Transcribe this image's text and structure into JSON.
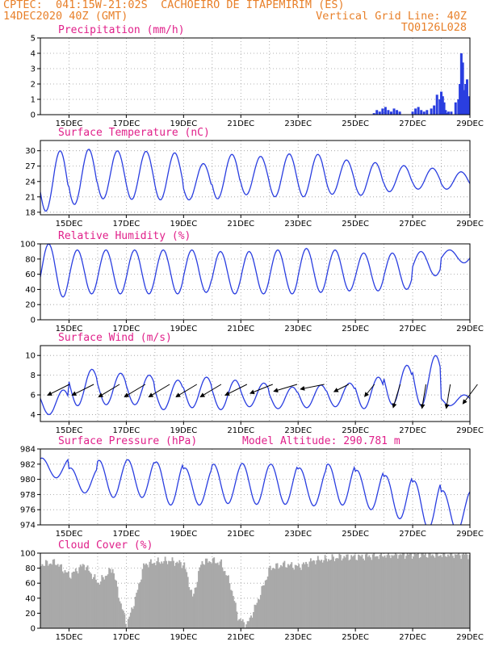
{
  "header": {
    "line1_left": "CPTEC:  041:15W-21:02S  CACHOEIRO DE ITAPEMIRIM (ES)",
    "line2_left": "14DEC2020 40Z (GMT)",
    "line2_right": "Vertical Grid Line: 40Z",
    "line3_right": "TQ0126L028"
  },
  "colors": {
    "line": "#2a3ee0",
    "title": "#e0208a",
    "header": "#e8802a",
    "cloud": "#a9a9a9",
    "grid": "#9a9a9a"
  },
  "chart_data": [
    {
      "id": "precip",
      "type": "bar",
      "title": "Precipitation (mm/h)",
      "xlabels": [
        "15DEC",
        "17DEC",
        "19DEC",
        "21DEC",
        "23DEC",
        "25DEC",
        "27DEC",
        "29DEC"
      ],
      "xlim": [
        14.0,
        29.0
      ],
      "ylim": [
        0,
        5
      ],
      "yticks": [
        0,
        1,
        2,
        3,
        4,
        5
      ],
      "x": [
        25.65,
        25.75,
        25.85,
        25.95,
        26.05,
        26.15,
        26.25,
        26.35,
        26.45,
        26.55,
        27.0,
        27.1,
        27.2,
        27.3,
        27.4,
        27.5,
        27.65,
        27.75,
        27.85,
        27.95,
        28.0,
        28.05,
        28.1,
        28.15,
        28.2,
        28.25,
        28.35,
        28.5,
        28.6,
        28.65,
        28.7,
        28.75,
        28.8,
        28.85,
        28.9,
        28.95
      ],
      "values": [
        0.1,
        0.3,
        0.2,
        0.4,
        0.5,
        0.3,
        0.2,
        0.4,
        0.3,
        0.2,
        0.2,
        0.4,
        0.5,
        0.3,
        0.2,
        0.3,
        0.4,
        0.6,
        1.3,
        1.0,
        1.5,
        1.2,
        0.8,
        0.3,
        0.1,
        0.2,
        0.2,
        0.8,
        1.0,
        2.0,
        4.0,
        3.4,
        1.6,
        2.0,
        2.3,
        1.2
      ]
    },
    {
      "id": "temp",
      "type": "line",
      "title": "Surface Temperature (nC)",
      "xlabels": [
        "15DEC",
        "17DEC",
        "19DEC",
        "21DEC",
        "23DEC",
        "25DEC",
        "27DEC",
        "29DEC"
      ],
      "xlim": [
        14.0,
        29.0
      ],
      "ylim": [
        17.5,
        32.0
      ],
      "yticks": [
        18,
        21,
        24,
        27,
        30
      ],
      "daily": {
        "start": 14.0,
        "end": 29.0,
        "max_time": 0.69,
        "min_time": 0.29,
        "max": [
          30.0,
          30.3,
          30.0,
          29.9,
          29.6,
          27.5,
          29.3,
          28.9,
          29.4,
          29.3,
          28.2,
          27.7,
          27.1,
          26.6,
          25.9
        ],
        "min": [
          18.2,
          19.5,
          20.6,
          20.5,
          20.4,
          20.4,
          20.6,
          21.4,
          21.0,
          21.0,
          21.5,
          21.3,
          22.0,
          22.5,
          22.5
        ]
      }
    },
    {
      "id": "rh",
      "type": "line",
      "title": "Relative Humidity (%)",
      "xlabels": [
        "15DEC",
        "17DEC",
        "19DEC",
        "21DEC",
        "23DEC",
        "25DEC",
        "27DEC",
        "29DEC"
      ],
      "xlim": [
        14.0,
        29.0
      ],
      "ylim": [
        0,
        100
      ],
      "yticks": [
        0,
        20,
        40,
        60,
        80,
        100
      ],
      "daily": {
        "start": 14.0,
        "end": 29.0,
        "max_time": 0.29,
        "min_time": 0.69,
        "max": [
          100,
          92,
          92,
          92,
          92,
          92,
          90,
          90,
          92,
          94,
          92,
          88,
          88,
          90,
          92
        ],
        "min": [
          30,
          34,
          34,
          34,
          34,
          36,
          34,
          34,
          34,
          36,
          38,
          38,
          40,
          58,
          75
        ]
      }
    },
    {
      "id": "wind",
      "type": "line",
      "title": "Surface Wind (m/s)",
      "xlabels": [
        "15DEC",
        "17DEC",
        "19DEC",
        "21DEC",
        "23DEC",
        "25DEC",
        "27DEC",
        "29DEC"
      ],
      "xlim": [
        14.0,
        29.0
      ],
      "ylim": [
        3.3,
        11.0
      ],
      "yticks": [
        4,
        6,
        8,
        10
      ],
      "daily": {
        "start": 14.0,
        "end": 29.0,
        "max_time": 0.8,
        "min_time": 0.35,
        "max": [
          6.5,
          8.6,
          8.2,
          8.0,
          7.5,
          7.8,
          7.5,
          7.2,
          6.8,
          7.0,
          7.2,
          7.8,
          9.0,
          10.0,
          6.0
        ],
        "min": [
          4.0,
          4.9,
          5.0,
          5.0,
          4.5,
          4.7,
          4.5,
          4.8,
          4.6,
          4.7,
          4.8,
          4.6,
          5.0,
          4.9,
          4.9
        ]
      },
      "vectors": {
        "x": [
          14.45,
          15.3,
          16.2,
          17.1,
          17.95,
          18.9,
          19.75,
          20.65,
          21.55,
          22.4,
          23.35,
          24.2,
          25.1,
          26.0,
          26.9,
          27.75,
          28.7
        ],
        "u": [
          1.0,
          1.0,
          1.0,
          1.0,
          1.0,
          1.0,
          1.0,
          1.0,
          1.0,
          1.0,
          1.0,
          0.6,
          0.4,
          0.3,
          0.2,
          0.2,
          0.6
        ],
        "v": [
          0.5,
          0.5,
          0.6,
          0.6,
          0.6,
          0.6,
          0.6,
          0.5,
          0.4,
          0.3,
          0.2,
          0.3,
          0.5,
          1.0,
          1.2,
          1.2,
          0.8
        ]
      }
    },
    {
      "id": "pres",
      "type": "line",
      "title": "Surface Pressure (hPa)",
      "annotation": "Model Altitude: 290.781 m",
      "xlabels": [
        "15DEC",
        "17DEC",
        "19DEC",
        "21DEC",
        "23DEC",
        "25DEC",
        "27DEC",
        "29DEC"
      ],
      "xlim": [
        14.0,
        29.0
      ],
      "ylim": [
        974,
        984
      ],
      "yticks": [
        974,
        976,
        978,
        980,
        982,
        984
      ],
      "daily": {
        "start": 14.0,
        "end": 29.0,
        "max_time": 0.05,
        "min_time": 0.7,
        "max": [
          982.8,
          981.5,
          982.5,
          982.6,
          982.3,
          981.5,
          982.0,
          982.1,
          982.0,
          981.5,
          982.0,
          981.2,
          980.5,
          979.8,
          978.5
        ],
        "min": [
          980.2,
          978.2,
          977.6,
          977.6,
          976.6,
          976.6,
          976.8,
          976.7,
          976.7,
          976.5,
          976.6,
          976.0,
          974.8,
          973.5,
          973.2
        ]
      }
    },
    {
      "id": "cloud",
      "type": "bar",
      "title": "Cloud Cover (%)",
      "xlabels": [
        "15DEC",
        "17DEC",
        "19DEC",
        "21DEC",
        "23DEC",
        "25DEC",
        "27DEC",
        "29DEC"
      ],
      "xlim": [
        14.0,
        29.0
      ],
      "ylim": [
        0,
        100
      ],
      "yticks": [
        0,
        20,
        40,
        60,
        80,
        100
      ],
      "profile": {
        "x": [
          14.0,
          14.5,
          15.0,
          15.5,
          16.0,
          16.5,
          16.8,
          17.0,
          17.3,
          17.6,
          18.0,
          18.5,
          19.0,
          19.3,
          19.6,
          20.0,
          20.3,
          20.6,
          20.9,
          21.2,
          21.5,
          22.0,
          22.5,
          23.0,
          23.5,
          24.0,
          24.5,
          25.0,
          25.5,
          26.0,
          26.5,
          27.0,
          27.5,
          28.0,
          28.5,
          29.0
        ],
        "values": [
          85,
          88,
          70,
          85,
          60,
          80,
          30,
          5,
          40,
          85,
          88,
          90,
          85,
          40,
          88,
          90,
          86,
          60,
          12,
          5,
          30,
          80,
          85,
          82,
          90,
          92,
          95,
          95,
          96,
          97,
          98,
          98,
          98,
          98,
          98,
          98
        ]
      }
    }
  ]
}
